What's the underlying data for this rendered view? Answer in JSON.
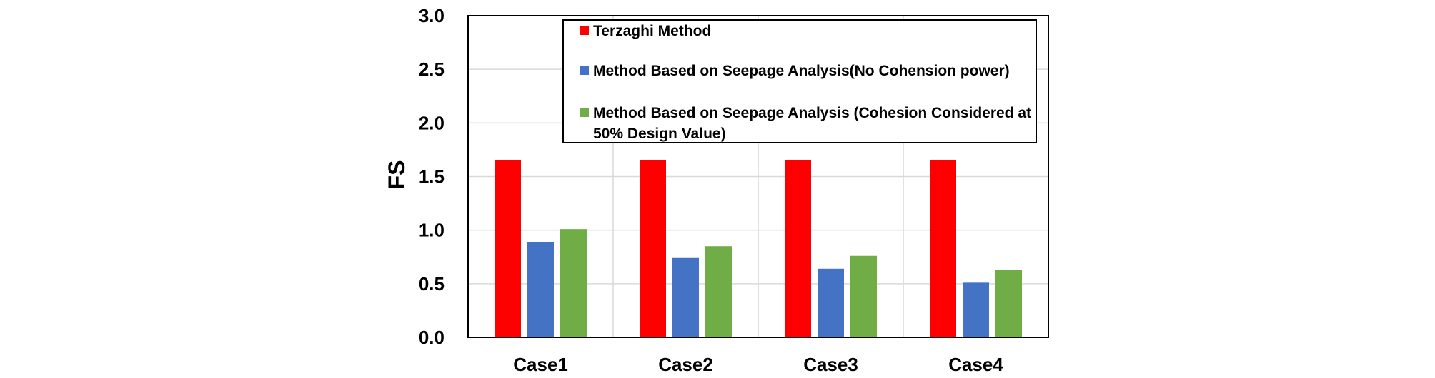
{
  "chart_data": {
    "type": "bar",
    "title": "",
    "xlabel": "",
    "ylabel": "FS",
    "ylim": [
      0,
      3.0
    ],
    "yticks": [
      "0.0",
      "0.5",
      "1.0",
      "1.5",
      "2.0",
      "2.5",
      "3.0"
    ],
    "categories": [
      "Case1",
      "Case2",
      "Case3",
      "Case4"
    ],
    "grid": true,
    "legend_position": "top-right",
    "series": [
      {
        "name": "Terzaghi Method",
        "color": "#ff0000",
        "values": [
          1.65,
          1.65,
          1.65,
          1.65
        ]
      },
      {
        "name": "Method Based on Seepage Analysis(No Cohension power)",
        "color": "#4472c4",
        "values": [
          0.89,
          0.74,
          0.64,
          0.51
        ]
      },
      {
        "name": "Method Based on Seepage Analysis (Cohesion Considered at 50% Design Value)",
        "color": "#70ad47",
        "values": [
          1.01,
          0.85,
          0.76,
          0.63
        ]
      }
    ]
  },
  "legend": {
    "items": [
      {
        "lines": [
          "Terzaghi Method"
        ]
      },
      {
        "lines": [
          "Method Based on Seepage Analysis(No Cohension power)"
        ]
      },
      {
        "lines": [
          "Method Based on Seepage Analysis (Cohesion Considered at",
          "50% Design Value)"
        ]
      }
    ]
  }
}
